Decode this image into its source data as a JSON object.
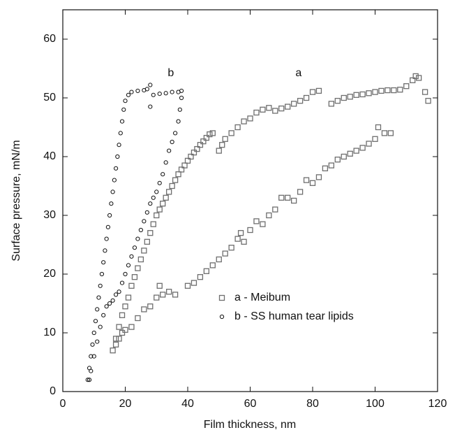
{
  "chart_data": {
    "type": "scatter",
    "xlabel": "Film thickness, nm",
    "ylabel": "Surface pressure, mN/m",
    "xlim": [
      0,
      120
    ],
    "xticks": [
      0,
      20,
      40,
      60,
      80,
      100,
      120
    ],
    "ylim": [
      0,
      65
    ],
    "yticks": [
      0,
      10,
      20,
      30,
      40,
      50,
      60
    ],
    "legend": "center right",
    "annotations": [
      {
        "text": "a",
        "x": 75.5,
        "y": 54.2
      },
      {
        "text": "b",
        "x": 34.6,
        "y": 54.2
      }
    ],
    "series": [
      {
        "name": "a - Meibum",
        "color": "#6e6e6e",
        "marker": "square",
        "x": [
          16,
          17,
          18,
          19,
          20,
          21,
          22,
          23,
          24,
          25,
          26,
          27,
          28,
          29,
          30,
          31,
          32,
          33,
          34,
          35,
          36,
          37,
          38,
          39,
          40,
          41,
          42,
          43,
          44,
          45,
          46,
          47,
          48,
          50,
          51,
          52,
          54,
          56,
          58,
          60,
          62,
          64,
          66,
          68,
          70,
          72,
          74,
          76,
          78,
          80,
          82,
          86,
          88,
          90,
          92,
          94,
          96,
          98,
          100,
          102,
          104,
          106,
          108,
          110,
          112,
          113,
          114,
          116,
          117,
          17,
          18,
          19,
          20,
          22,
          24,
          26,
          28,
          30,
          31,
          32,
          34,
          36,
          40,
          42,
          44,
          46,
          48,
          50,
          52,
          54,
          56,
          57,
          58,
          60,
          62,
          64,
          66,
          68,
          70,
          72,
          74,
          76,
          78,
          80,
          82,
          84,
          86,
          88,
          90,
          92,
          94,
          96,
          98,
          100,
          101,
          103,
          105
        ],
        "values": [
          7,
          9,
          11,
          13,
          14.5,
          16,
          18,
          19.5,
          21,
          22.5,
          24,
          25.5,
          27,
          28.5,
          30,
          31,
          32,
          33,
          34,
          35,
          36,
          37,
          37.8,
          38.5,
          39.3,
          40,
          40.7,
          41.3,
          42,
          42.6,
          43.2,
          43.8,
          44,
          41,
          42,
          43,
          44,
          45,
          46,
          46.5,
          47.5,
          48,
          48.3,
          47.8,
          48.2,
          48.5,
          49,
          49.5,
          50,
          51,
          51.2,
          49,
          49.5,
          50,
          50.2,
          50.5,
          50.6,
          50.8,
          51,
          51.2,
          51.3,
          51.3,
          51.4,
          52,
          53,
          53.7,
          53.4,
          51,
          49.5,
          8,
          9,
          10,
          10.5,
          11,
          12.5,
          14,
          14.5,
          16,
          18,
          16.5,
          17,
          16.5,
          18,
          18.5,
          19.5,
          20.5,
          21.5,
          22.5,
          23.5,
          24.5,
          26,
          27,
          25.5,
          27.5,
          29,
          28.5,
          30,
          31,
          33,
          33,
          32.5,
          34,
          36,
          35.5,
          36.5,
          38,
          38.5,
          39.5,
          40,
          40.5,
          41,
          41.5,
          42.2,
          43,
          45,
          44,
          44
        ]
      },
      {
        "name": "b - SS human tear lipids",
        "color": "#111111",
        "marker": "circle",
        "x": [
          8,
          8.5,
          9,
          9.5,
          10,
          10.5,
          11,
          11.5,
          12,
          12.5,
          13,
          13.5,
          14,
          14.5,
          15,
          15.5,
          16,
          16.5,
          17,
          17.5,
          18,
          18.5,
          19,
          19.5,
          20,
          21,
          22,
          24,
          26,
          27,
          28,
          28,
          29,
          31,
          33,
          35,
          37,
          38,
          38,
          37.5,
          37,
          36,
          35,
          34,
          33,
          32,
          31,
          30,
          29,
          28,
          27,
          26,
          25,
          24,
          23,
          22,
          21,
          20,
          19,
          18,
          17,
          16,
          15,
          14,
          13,
          12,
          11,
          10,
          9,
          8.5
        ],
        "values": [
          2,
          4,
          6,
          8,
          10,
          12,
          14,
          16,
          18,
          20,
          22,
          24,
          26,
          28,
          30,
          32,
          34,
          36,
          38,
          40,
          42,
          44,
          46,
          48,
          49.5,
          50.5,
          51,
          51.2,
          51.3,
          51.5,
          52.2,
          48.5,
          50.5,
          50.7,
          50.8,
          51,
          51,
          51.2,
          50,
          48,
          46,
          44,
          42.5,
          41,
          39,
          37,
          35.5,
          34,
          33,
          32,
          30.5,
          29,
          27.5,
          26,
          24.5,
          23,
          21.5,
          20,
          18.5,
          17,
          16.5,
          15.5,
          15,
          14.5,
          13,
          11,
          8.5,
          6,
          3.5,
          2
        ]
      }
    ]
  }
}
